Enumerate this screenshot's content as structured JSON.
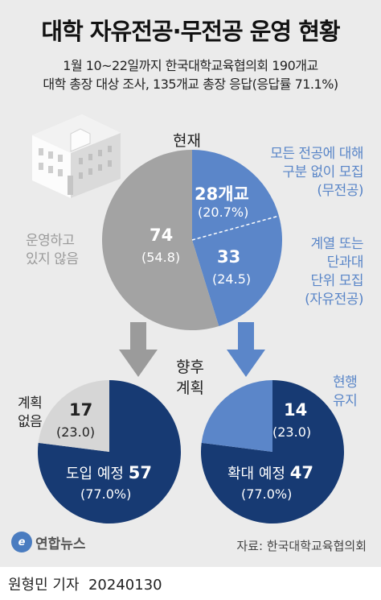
{
  "header": {
    "title": "대학 자유전공·무전공 운영 현황",
    "subtitle_line1": "1월 10~22일까지 한국대학교육협의회 190개교",
    "subtitle_line2": "대학 총장 대상 조사, 135개교 총장 응답(응답률 71.1%)"
  },
  "colors": {
    "gray": "#a3a3a3",
    "light_blue": "#5b86c9",
    "navy": "#173a73",
    "light_gray_slice": "#d6d6d6",
    "panel_bg": "#ebebeb"
  },
  "chart_data": [
    {
      "type": "pie",
      "title": "현재",
      "slices": [
        {
          "label": "모든 전공에 대해 구분 없이 모집 (무전공)",
          "value": 28,
          "unit": "개교",
          "percent": 20.7,
          "color": "#5b86c9"
        },
        {
          "label": "계열 또는 단과대 단위 모집 (자유전공)",
          "value": 33,
          "percent": 24.5,
          "color": "#5b86c9"
        },
        {
          "label": "운영하고 있지 않음",
          "value": 74,
          "percent": 54.8,
          "color": "#a3a3a3"
        }
      ]
    },
    {
      "type": "pie",
      "title": "향후 계획",
      "slices": [
        {
          "label": "도입 예정",
          "value": 57,
          "percent": 77.0,
          "color": "#173a73"
        },
        {
          "label": "계획 없음",
          "value": 17,
          "percent": 23.0,
          "color": "#d6d6d6"
        }
      ]
    },
    {
      "type": "pie",
      "title": "향후 계획",
      "slices": [
        {
          "label": "확대 예정",
          "value": 47,
          "percent": 77.0,
          "color": "#173a73"
        },
        {
          "label": "현행 유지",
          "value": 14,
          "percent": 23.0,
          "color": "#5b86c9"
        }
      ]
    }
  ],
  "labels": {
    "now": "현재",
    "future_1": "향후",
    "future_2": "계획",
    "c1_s1_value": "28개교",
    "c1_s1_pct": "(20.7%)",
    "c1_s1_desc": [
      "모든 전공에 대해",
      "구분 없이 모집",
      "(무전공)"
    ],
    "c1_s2_value": "33",
    "c1_s2_pct": "(24.5)",
    "c1_s2_desc": [
      "계열 또는",
      "단과대",
      "단위 모집",
      "(자유전공)"
    ],
    "c1_s3_value": "74",
    "c1_s3_pct": "(54.8)",
    "c1_s3_desc": [
      "운영하고",
      "있지 않음"
    ],
    "c2_s2_value": "17",
    "c2_s2_pct": "(23.0)",
    "c2_s2_desc": [
      "계획",
      "없음"
    ],
    "c2_s1_text": "도입 예정",
    "c2_s1_value": "57",
    "c2_s1_pct": "(77.0%)",
    "c3_s2_value": "14",
    "c3_s2_pct": "(23.0)",
    "c3_s2_desc": [
      "현행",
      "유지"
    ],
    "c3_s1_text": "확대 예정",
    "c3_s1_value": "47",
    "c3_s1_pct": "(77.0%)"
  },
  "footer": {
    "logo_mark": "e",
    "logo_text": "연합뉴스",
    "source": "자료: 한국대학교육협의회",
    "reporter": "원형민 기자",
    "date": "20240130"
  }
}
